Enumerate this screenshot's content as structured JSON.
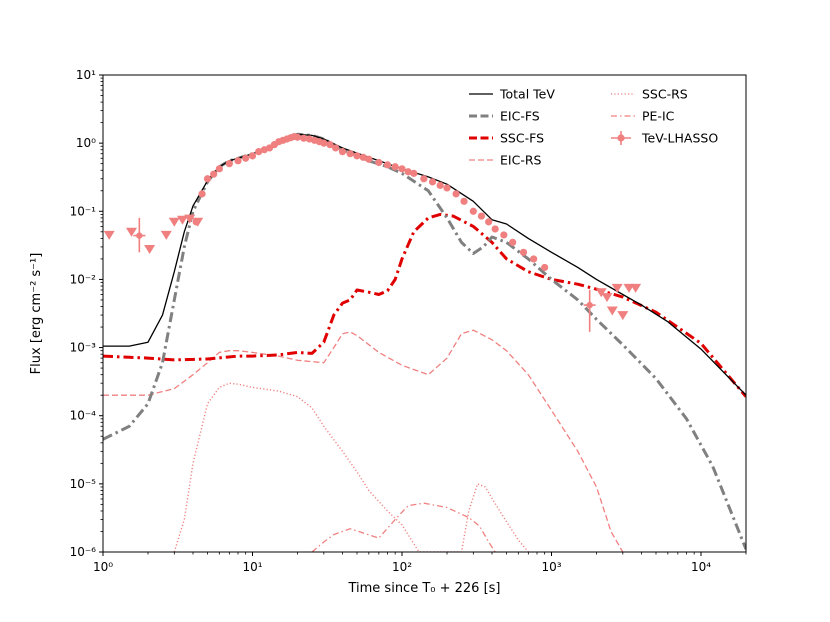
{
  "chart_data": {
    "type": "line",
    "title": "",
    "xlabel": "Time since T₀ + 226 [s]",
    "ylabel": "Flux [erg cm⁻² s⁻¹]",
    "xscale": "log",
    "yscale": "log",
    "xlim": [
      1,
      20000
    ],
    "ylim": [
      1e-06,
      10
    ],
    "x_ticks": [
      1,
      10,
      100,
      1000,
      10000
    ],
    "x_tick_labels": [
      "10⁰",
      "10¹",
      "10²",
      "10³",
      "10⁴"
    ],
    "y_ticks": [
      1e-06,
      1e-05,
      0.0001,
      0.001,
      0.01,
      0.1,
      1,
      10
    ],
    "y_tick_labels": [
      "10⁻⁶",
      "10⁻⁵",
      "10⁻⁴",
      "10⁻³",
      "10⁻²",
      "10⁻¹",
      "10⁰",
      "10¹"
    ],
    "legend_position": "top-right",
    "series": [
      {
        "name": "Total TeV",
        "key": "total-tev",
        "color": "#000000",
        "style": "solid",
        "weight": "thin",
        "points": [
          [
            1,
            0.00105
          ],
          [
            1.5,
            0.00105
          ],
          [
            2,
            0.0012
          ],
          [
            2.5,
            0.003
          ],
          [
            3,
            0.013
          ],
          [
            3.5,
            0.05
          ],
          [
            4,
            0.12
          ],
          [
            5,
            0.28
          ],
          [
            6,
            0.45
          ],
          [
            7,
            0.55
          ],
          [
            8,
            0.6
          ],
          [
            10,
            0.7
          ],
          [
            12,
            0.8
          ],
          [
            15,
            1.05
          ],
          [
            18,
            1.3
          ],
          [
            20,
            1.35
          ],
          [
            25,
            1.3
          ],
          [
            30,
            1.15
          ],
          [
            40,
            0.85
          ],
          [
            60,
            0.62
          ],
          [
            80,
            0.5
          ],
          [
            100,
            0.42
          ],
          [
            150,
            0.32
          ],
          [
            200,
            0.25
          ],
          [
            300,
            0.14
          ],
          [
            400,
            0.075
          ],
          [
            500,
            0.065
          ],
          [
            700,
            0.04
          ],
          [
            1000,
            0.025
          ],
          [
            1500,
            0.015
          ],
          [
            2000,
            0.01
          ],
          [
            3000,
            0.006
          ],
          [
            4000,
            0.0042
          ],
          [
            6000,
            0.0024
          ],
          [
            10000,
            0.00095
          ],
          [
            20000,
            0.0002
          ]
        ]
      },
      {
        "name": "EIC-FS",
        "key": "eic-fs",
        "color": "#808080",
        "style": "dashdot",
        "weight": "thick",
        "points": [
          [
            1,
            4.5e-05
          ],
          [
            1.5,
            7e-05
          ],
          [
            2,
            0.00015
          ],
          [
            2.5,
            0.0006
          ],
          [
            3,
            0.005
          ],
          [
            3.5,
            0.03
          ],
          [
            4,
            0.1
          ],
          [
            5,
            0.27
          ],
          [
            6,
            0.45
          ],
          [
            7,
            0.55
          ],
          [
            8,
            0.6
          ],
          [
            10,
            0.7
          ],
          [
            12,
            0.8
          ],
          [
            15,
            1.0
          ],
          [
            18,
            1.25
          ],
          [
            20,
            1.35
          ],
          [
            25,
            1.3
          ],
          [
            30,
            1.15
          ],
          [
            40,
            0.8
          ],
          [
            60,
            0.55
          ],
          [
            80,
            0.45
          ],
          [
            100,
            0.36
          ],
          [
            150,
            0.2
          ],
          [
            200,
            0.08
          ],
          [
            250,
            0.035
          ],
          [
            300,
            0.024
          ],
          [
            350,
            0.03
          ],
          [
            400,
            0.042
          ],
          [
            500,
            0.035
          ],
          [
            700,
            0.02
          ],
          [
            1000,
            0.01
          ],
          [
            1500,
            0.005
          ],
          [
            2000,
            0.0026
          ],
          [
            3000,
            0.0011
          ],
          [
            5000,
            0.00035
          ],
          [
            8000,
            9e-05
          ],
          [
            12000,
            1.8e-05
          ],
          [
            20000,
            1.1e-06
          ]
        ]
      },
      {
        "name": "SSC-FS",
        "key": "ssc-fs",
        "color": "#e00000",
        "style": "dashdot",
        "weight": "thick",
        "points": [
          [
            1,
            0.00075
          ],
          [
            2,
            0.0007
          ],
          [
            3,
            0.00066
          ],
          [
            5,
            0.00068
          ],
          [
            8,
            0.00075
          ],
          [
            10,
            0.00075
          ],
          [
            15,
            0.00078
          ],
          [
            20,
            0.00085
          ],
          [
            25,
            0.00082
          ],
          [
            30,
            0.0012
          ],
          [
            35,
            0.003
          ],
          [
            40,
            0.0045
          ],
          [
            45,
            0.005
          ],
          [
            50,
            0.007
          ],
          [
            60,
            0.0065
          ],
          [
            70,
            0.006
          ],
          [
            80,
            0.0068
          ],
          [
            90,
            0.01
          ],
          [
            100,
            0.02
          ],
          [
            120,
            0.05
          ],
          [
            150,
            0.08
          ],
          [
            180,
            0.09
          ],
          [
            220,
            0.085
          ],
          [
            300,
            0.06
          ],
          [
            400,
            0.035
          ],
          [
            500,
            0.02
          ],
          [
            700,
            0.013
          ],
          [
            1000,
            0.01
          ],
          [
            1500,
            0.0085
          ],
          [
            2000,
            0.0072
          ],
          [
            3000,
            0.0055
          ],
          [
            5000,
            0.0033
          ],
          [
            10000,
            0.00115
          ],
          [
            20000,
            0.00019
          ]
        ]
      },
      {
        "name": "EIC-RS",
        "key": "eic-rs",
        "color": "#f08080",
        "style": "dashed",
        "weight": "thin",
        "points": [
          [
            1,
            0.0002
          ],
          [
            2,
            0.0002
          ],
          [
            3,
            0.00025
          ],
          [
            4,
            0.0004
          ],
          [
            5,
            0.0006
          ],
          [
            6,
            0.00085
          ],
          [
            7,
            0.0009
          ],
          [
            8,
            0.0009
          ],
          [
            10,
            0.00085
          ],
          [
            15,
            0.00075
          ],
          [
            20,
            0.00065
          ],
          [
            30,
            0.0006
          ],
          [
            35,
            0.001
          ],
          [
            40,
            0.0016
          ],
          [
            45,
            0.0017
          ],
          [
            50,
            0.0015
          ],
          [
            70,
            0.00085
          ],
          [
            100,
            0.00055
          ],
          [
            150,
            0.0004
          ],
          [
            200,
            0.0007
          ],
          [
            250,
            0.0016
          ],
          [
            300,
            0.0018
          ],
          [
            400,
            0.0013
          ],
          [
            500,
            0.0009
          ],
          [
            700,
            0.0004
          ],
          [
            1000,
            0.00012
          ],
          [
            1500,
            3e-05
          ],
          [
            2000,
            9e-06
          ],
          [
            2500,
            2e-06
          ],
          [
            3000,
            1e-06
          ]
        ]
      },
      {
        "name": "SSC-RS",
        "key": "ssc-rs",
        "color": "#f08080",
        "style": "dotted",
        "weight": "thin",
        "points": [
          [
            3,
            1e-06
          ],
          [
            3.5,
            3e-06
          ],
          [
            4,
            2e-05
          ],
          [
            5,
            0.00015
          ],
          [
            6,
            0.00026
          ],
          [
            7,
            0.0003
          ],
          [
            8,
            0.00029
          ],
          [
            10,
            0.00026
          ],
          [
            15,
            0.00023
          ],
          [
            20,
            0.00019
          ],
          [
            25,
            0.00013
          ],
          [
            30,
            7e-05
          ],
          [
            40,
            3e-05
          ],
          [
            50,
            1.5e-05
          ],
          [
            60,
            8e-06
          ],
          [
            80,
            4e-06
          ],
          [
            100,
            2.5e-06
          ],
          [
            130,
            1e-06
          ],
          [
            250,
            1e-06
          ],
          [
            280,
            4e-06
          ],
          [
            320,
            1e-05
          ],
          [
            360,
            9e-06
          ],
          [
            450,
            4e-06
          ],
          [
            600,
            1.5e-06
          ],
          [
            700,
            1e-06
          ]
        ]
      },
      {
        "name": "PE-IC",
        "key": "pe-ic",
        "color": "#f08080",
        "style": "dashdot",
        "weight": "thin",
        "points": [
          [
            25,
            1e-06
          ],
          [
            30,
            1.4e-06
          ],
          [
            35,
            1.8e-06
          ],
          [
            40,
            2e-06
          ],
          [
            45,
            2.2e-06
          ],
          [
            55,
            1.9e-06
          ],
          [
            70,
            1.6e-06
          ],
          [
            90,
            3e-06
          ],
          [
            110,
            4.8e-06
          ],
          [
            140,
            5.2e-06
          ],
          [
            200,
            4.5e-06
          ],
          [
            280,
            3.2e-06
          ],
          [
            330,
            2.4e-06
          ],
          [
            380,
            1.4e-06
          ],
          [
            420,
            1e-06
          ]
        ]
      }
    ],
    "observations": {
      "name": "TeV-LHASSO",
      "key": "tev-lhasso",
      "color": "#f08080",
      "points": [
        [
          4.2,
          0.07
        ],
        [
          4.6,
          0.18
        ],
        [
          5,
          0.3
        ],
        [
          5.5,
          0.35
        ],
        [
          6,
          0.42
        ],
        [
          7,
          0.5
        ],
        [
          8,
          0.55
        ],
        [
          9,
          0.6
        ],
        [
          10,
          0.65
        ],
        [
          11,
          0.75
        ],
        [
          12,
          0.8
        ],
        [
          13,
          0.85
        ],
        [
          14,
          0.95
        ],
        [
          15,
          1.05
        ],
        [
          16,
          1.1
        ],
        [
          17,
          1.15
        ],
        [
          18,
          1.2
        ],
        [
          19,
          1.25
        ],
        [
          20,
          1.22
        ],
        [
          22,
          1.18
        ],
        [
          24,
          1.15
        ],
        [
          26,
          1.1
        ],
        [
          28,
          1.05
        ],
        [
          30,
          1.0
        ],
        [
          33,
          0.95
        ],
        [
          36,
          0.85
        ],
        [
          40,
          0.75
        ],
        [
          45,
          0.7
        ],
        [
          50,
          0.65
        ],
        [
          55,
          0.62
        ],
        [
          60,
          0.58
        ],
        [
          70,
          0.52
        ],
        [
          80,
          0.48
        ],
        [
          90,
          0.45
        ],
        [
          100,
          0.42
        ],
        [
          110,
          0.38
        ],
        [
          120,
          0.36
        ],
        [
          140,
          0.3
        ],
        [
          160,
          0.27
        ],
        [
          180,
          0.24
        ],
        [
          200,
          0.22
        ],
        [
          230,
          0.18
        ],
        [
          260,
          0.14
        ],
        [
          300,
          0.1
        ],
        [
          340,
          0.085
        ],
        [
          380,
          0.07
        ],
        [
          420,
          0.055
        ],
        [
          480,
          0.045
        ],
        [
          550,
          0.035
        ],
        [
          650,
          0.025
        ],
        [
          760,
          0.02
        ],
        [
          900,
          0.015
        ]
      ],
      "error_points": [
        {
          "x": 1.75,
          "y": 0.044,
          "y_low": 0.025,
          "y_high": 0.08
        },
        {
          "x": 1800,
          "y": 0.0042,
          "y_low": 0.0017,
          "y_high": 0.007
        }
      ],
      "upper_limits": [
        [
          1.1,
          0.045
        ],
        [
          1.55,
          0.05
        ],
        [
          2.05,
          0.028
        ],
        [
          2.65,
          0.045
        ],
        [
          3.0,
          0.07
        ],
        [
          3.4,
          0.075
        ],
        [
          3.8,
          0.078
        ],
        [
          4.3,
          0.07
        ],
        [
          2150,
          0.0065
        ],
        [
          2350,
          0.0055
        ],
        [
          2550,
          0.0035
        ],
        [
          2750,
          0.0075
        ],
        [
          3000,
          0.003
        ],
        [
          3300,
          0.0075
        ],
        [
          3650,
          0.0075
        ]
      ]
    }
  }
}
